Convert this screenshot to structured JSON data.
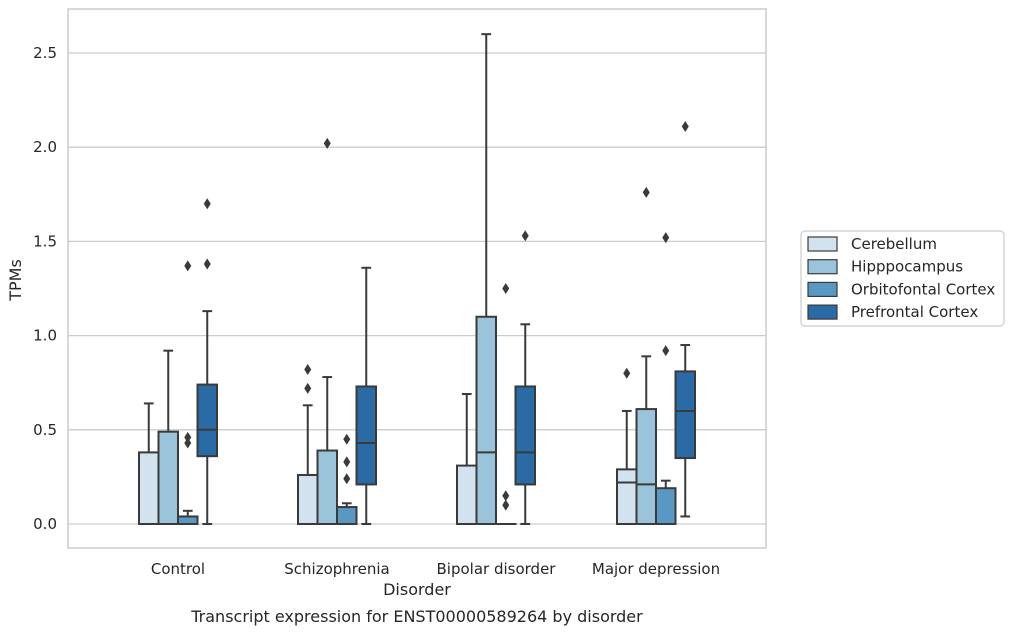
{
  "caption": "Transcript expression for ENST00000589264 by disorder",
  "colors": {
    "Cerebellum": "#d3e2ef",
    "Hipppocampus": "#9bc4da",
    "Orbitofontal Cortex": "#5a98c4",
    "Prefrontal Cortex": "#2a6aa5",
    "edge": "#3a3a3a",
    "grid": "#cccccc"
  },
  "chart_data": {
    "type": "box",
    "xlabel": "Disorder",
    "ylabel": "TPMs",
    "ylim": [
      -0.12,
      2.72
    ],
    "yticks": [
      "0.0",
      "0.5",
      "1.0",
      "1.5",
      "2.0",
      "2.5"
    ],
    "ytick_values": [
      0,
      0.5,
      1.0,
      1.5,
      2.0,
      2.5
    ],
    "grid": "horizontal",
    "legend_position": "right",
    "categories": [
      "Control",
      "Schizophrenia",
      "Bipolar disorder",
      "Major depression"
    ],
    "series": [
      {
        "name": "Cerebellum",
        "boxes": [
          {
            "min": 0,
            "q1": 0,
            "median": 0,
            "q3": 0.38,
            "max": 0.64,
            "outliers": []
          },
          {
            "min": 0,
            "q1": 0,
            "median": 0,
            "q3": 0.26,
            "max": 0.63,
            "outliers": [
              0.72,
              0.82
            ]
          },
          {
            "min": 0,
            "q1": 0,
            "median": 0,
            "q3": 0.31,
            "max": 0.69,
            "outliers": []
          },
          {
            "min": 0,
            "q1": 0,
            "median": 0.22,
            "q3": 0.29,
            "max": 0.6,
            "outliers": [
              0.8
            ]
          }
        ]
      },
      {
        "name": "Hipppocampus",
        "boxes": [
          {
            "min": 0,
            "q1": 0,
            "median": 0,
            "q3": 0.49,
            "max": 0.92,
            "outliers": []
          },
          {
            "min": 0,
            "q1": 0,
            "median": 0,
            "q3": 0.39,
            "max": 0.78,
            "outliers": [
              2.02
            ]
          },
          {
            "min": 0,
            "q1": 0,
            "median": 0.38,
            "q3": 1.1,
            "max": 2.6,
            "outliers": []
          },
          {
            "min": 0,
            "q1": 0,
            "median": 0.21,
            "q3": 0.61,
            "max": 0.89,
            "outliers": [
              1.76
            ]
          }
        ]
      },
      {
        "name": "Orbitofontal Cortex",
        "boxes": [
          {
            "min": 0,
            "q1": 0,
            "median": 0,
            "q3": 0.04,
            "max": 0.07,
            "outliers": [
              0.43,
              0.46,
              1.37
            ]
          },
          {
            "min": 0,
            "q1": 0,
            "median": 0,
            "q3": 0.09,
            "max": 0.11,
            "outliers": [
              0.24,
              0.33,
              0.45
            ]
          },
          {
            "min": 0,
            "q1": 0,
            "median": 0,
            "q3": 0,
            "max": 0,
            "outliers": [
              0.1,
              0.15,
              1.25
            ]
          },
          {
            "min": 0,
            "q1": 0,
            "median": 0,
            "q3": 0.19,
            "max": 0.23,
            "outliers": [
              0.92,
              1.52
            ]
          }
        ]
      },
      {
        "name": "Prefrontal Cortex",
        "boxes": [
          {
            "min": 0,
            "q1": 0.36,
            "median": 0.5,
            "q3": 0.74,
            "max": 1.13,
            "outliers": [
              1.38,
              1.7
            ]
          },
          {
            "min": 0,
            "q1": 0.21,
            "median": 0.43,
            "q3": 0.73,
            "max": 1.36,
            "outliers": []
          },
          {
            "min": 0,
            "q1": 0.21,
            "median": 0.38,
            "q3": 0.73,
            "max": 1.06,
            "outliers": [
              1.53
            ]
          },
          {
            "min": 0.04,
            "q1": 0.35,
            "median": 0.6,
            "q3": 0.81,
            "max": 0.95,
            "outliers": [
              2.11
            ]
          }
        ]
      }
    ]
  }
}
